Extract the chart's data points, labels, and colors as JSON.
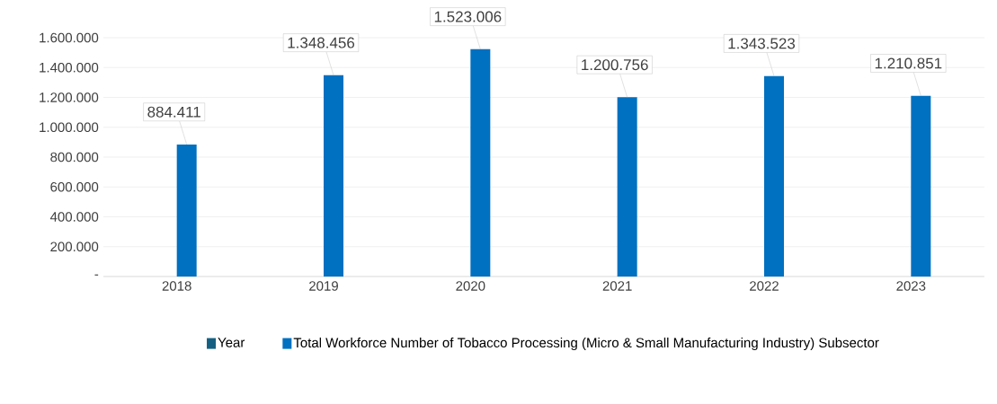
{
  "chart_data": {
    "type": "bar",
    "categories": [
      "2018",
      "2019",
      "2020",
      "2021",
      "2022",
      "2023"
    ],
    "series": [
      {
        "name": "Year",
        "color": "#156082",
        "values": [
          null,
          null,
          null,
          null,
          null,
          null
        ]
      },
      {
        "name": "Total Workforce Number of Tobacco Processing (Micro & Small Manufacturing Industry) Subsector",
        "color": "#0070c0",
        "values": [
          884411,
          1348456,
          1523006,
          1200756,
          1343523,
          1210851
        ],
        "value_labels": [
          "884.411",
          "1.348.456",
          "1.523.006",
          "1.200.756",
          "1.343.523",
          "1.210.851"
        ]
      }
    ],
    "ylim": [
      0,
      1600000
    ],
    "yticks": [
      {
        "value": 0,
        "label": "-"
      },
      {
        "value": 200000,
        "label": "200.000"
      },
      {
        "value": 400000,
        "label": "400.000"
      },
      {
        "value": 600000,
        "label": "600.000"
      },
      {
        "value": 800000,
        "label": "800.000"
      },
      {
        "value": 1000000,
        "label": "1.000.000"
      },
      {
        "value": 1200000,
        "label": "1.200.000"
      },
      {
        "value": 1400000,
        "label": "1.400.000"
      },
      {
        "value": 1600000,
        "label": "1.600.000"
      }
    ],
    "grid": "y",
    "legend": "bottom"
  }
}
